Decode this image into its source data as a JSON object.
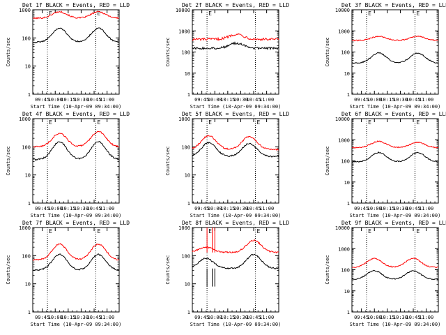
{
  "chart_data": [
    {
      "type": "line",
      "title": "Det 1f BLACK = Events, RED = LLD",
      "xlabel": "Start Time (10-Apr-09 09:34:00)",
      "ylabel": "Counts/sec",
      "scale": "log",
      "ylim": [
        1,
        1000
      ],
      "ytick_labels": [
        "1000",
        "100",
        "10",
        "1"
      ],
      "xtick_labels": [
        "09:45",
        "10:00",
        "10:15",
        "10:30",
        "10:45",
        "11:00"
      ],
      "vline_labels": [
        "E",
        "E"
      ],
      "events": {
        "base": 70,
        "peaks": [
          {
            "t": "10:05",
            "v": 220
          },
          {
            "t": "10:50",
            "v": 220
          }
        ]
      },
      "lld": {
        "base": 500,
        "peaks": [
          {
            "t": "10:05",
            "v": 850
          },
          {
            "t": "10:50",
            "v": 850
          }
        ]
      }
    },
    {
      "type": "line",
      "title": "Det 2f BLACK = Events, RED = LLD",
      "xlabel": "Start Time (10-Apr-09 09:34:00)",
      "ylabel": "Counts/sec",
      "scale": "log",
      "ylim": [
        1,
        10000
      ],
      "ytick_labels": [
        "10000",
        "1000",
        "100",
        "10",
        "1"
      ],
      "xtick_labels": [
        "09:45",
        "10:00",
        "10:15",
        "10:30",
        "10:45",
        "11:00"
      ],
      "vline_labels": [
        "E"
      ],
      "events": {
        "base": 150,
        "peaks": [
          {
            "t": "10:25",
            "v": 260
          }
        ]
      },
      "lld": {
        "base": 400,
        "peaks": [
          {
            "t": "10:25",
            "v": 700
          }
        ]
      }
    },
    {
      "type": "line",
      "title": "Det 3f BLACK = Events, RED = LLD",
      "xlabel": "Start Time (10-Apr-09 09:34:00)",
      "ylabel": "Counts/sec",
      "scale": "log",
      "ylim": [
        1,
        10000
      ],
      "ytick_labels": [
        "10000",
        "1000",
        "100",
        "10",
        "1"
      ],
      "xtick_labels": [
        "09:45",
        "10:00",
        "10:15",
        "10:30",
        "10:45",
        "11:00"
      ],
      "vline_labels": [
        "E",
        "E"
      ],
      "events": {
        "base": 30,
        "peaks": [
          {
            "t": "10:05",
            "v": 90
          },
          {
            "t": "10:50",
            "v": 90
          }
        ]
      },
      "lld": {
        "base": 350,
        "peaks": [
          {
            "t": "10:05",
            "v": 550
          },
          {
            "t": "10:50",
            "v": 550
          }
        ]
      }
    },
    {
      "type": "line",
      "title": "Det 4f BLACK = Events, RED = LLD",
      "xlabel": "Start Time (10-Apr-09 09:34:00)",
      "ylabel": "Counts/sec",
      "scale": "log",
      "ylim": [
        1,
        1000
      ],
      "ytick_labels": [
        "1000",
        "100",
        "10",
        "1"
      ],
      "xtick_labels": [
        "09:45",
        "10:00",
        "10:15",
        "10:30",
        "10:45",
        "11:00"
      ],
      "vline_labels": [
        "E",
        "E"
      ],
      "events": {
        "base": 35,
        "peaks": [
          {
            "t": "10:05",
            "v": 150
          },
          {
            "t": "10:50",
            "v": 150
          }
        ]
      },
      "lld": {
        "base": 100,
        "peaks": [
          {
            "t": "10:05",
            "v": 300
          },
          {
            "t": "10:50",
            "v": 350
          }
        ]
      }
    },
    {
      "type": "line",
      "title": "Det 5f BLACK = Events, RED = LLD",
      "xlabel": "Start Time (10-Apr-09 09:34:00)",
      "ylabel": "Counts/sec",
      "scale": "log",
      "ylim": [
        1,
        1000
      ],
      "ytick_labels": [
        "1000",
        "100",
        "10",
        "1"
      ],
      "xtick_labels": [
        "09:45",
        "10:00",
        "10:15",
        "10:30",
        "10:45",
        "11:00"
      ],
      "vline_labels": [
        "E",
        "E"
      ],
      "events": {
        "base": 45,
        "peaks": [
          {
            "t": "09:53",
            "v": 140
          },
          {
            "t": "10:40",
            "v": 130
          }
        ]
      },
      "lld": {
        "base": 80,
        "peaks": [
          {
            "t": "09:53",
            "v": 250
          },
          {
            "t": "10:40",
            "v": 230
          }
        ]
      }
    },
    {
      "type": "line",
      "title": "Det 6f BLACK = Events, RED = LLD",
      "xlabel": "Start Time (10-Apr-09 09:34:00)",
      "ylabel": "Counts/sec",
      "scale": "log",
      "ylim": [
        1,
        10000
      ],
      "ytick_labels": [
        "10000",
        "1000",
        "100",
        "10",
        "1"
      ],
      "xtick_labels": [
        "09:45",
        "10:00",
        "10:15",
        "10:30",
        "10:45",
        "11:00"
      ],
      "vline_labels": [
        "E",
        "E"
      ],
      "events": {
        "base": 90,
        "peaks": [
          {
            "t": "10:05",
            "v": 250
          },
          {
            "t": "10:50",
            "v": 250
          }
        ]
      },
      "lld": {
        "base": 420,
        "peaks": [
          {
            "t": "10:05",
            "v": 850
          },
          {
            "t": "10:50",
            "v": 750
          }
        ]
      }
    },
    {
      "type": "line",
      "title": "Det 7f BLACK = Events, RED = LLD",
      "xlabel": "Start Time (10-Apr-09 09:34:00)",
      "ylabel": "Counts/sec",
      "scale": "log",
      "ylim": [
        1,
        1000
      ],
      "ytick_labels": [
        "1000",
        "100",
        "10",
        "1"
      ],
      "xtick_labels": [
        "09:45",
        "10:00",
        "10:15",
        "10:30",
        "10:45",
        "11:00"
      ],
      "vline_labels": [
        "E",
        "E"
      ],
      "events": {
        "base": 30,
        "peaks": [
          {
            "t": "10:05",
            "v": 110
          },
          {
            "t": "10:50",
            "v": 110
          }
        ]
      },
      "lld": {
        "base": 70,
        "peaks": [
          {
            "t": "10:05",
            "v": 260
          },
          {
            "t": "10:50",
            "v": 260
          }
        ]
      }
    },
    {
      "type": "line",
      "title": "Det 8f BLACK = Events, RED = LLD",
      "xlabel": "Start Time (10-Apr-09 09:34:00)",
      "ylabel": "Counts/sec",
      "scale": "log",
      "ylim": [
        1,
        1000
      ],
      "ytick_labels": [
        "1000",
        "100",
        "10",
        "1"
      ],
      "xtick_labels": [
        "09:45",
        "10:00",
        "10:15",
        "10:30",
        "10:45",
        "11:00"
      ],
      "vline_labels": [
        "E",
        "E"
      ],
      "events": {
        "base": 35,
        "peaks": [
          {
            "t": "09:50",
            "v": 80
          },
          {
            "t": "10:45",
            "v": 110
          }
        ]
      },
      "lld": {
        "base": 130,
        "peaks": [
          {
            "t": "09:50",
            "v": 200
          },
          {
            "t": "10:45",
            "v": 350
          }
        ]
      },
      "spikes": [
        {
          "t": "09:51",
          "v": 1000
        },
        {
          "t": "09:57",
          "v": 1000
        },
        {
          "t": "10:00",
          "v": 1000
        }
      ]
    },
    {
      "type": "line",
      "title": "Det 9f BLACK = Events, RED = LLD",
      "xlabel": "Start Time (10-Apr-09 09:34:00)",
      "ylabel": "Counts/sec",
      "scale": "log",
      "ylim": [
        1,
        10000
      ],
      "ytick_labels": [
        "10000",
        "1000",
        "100",
        "10",
        "1"
      ],
      "xtick_labels": [
        "09:45",
        "10:00",
        "10:15",
        "10:30",
        "10:45",
        "11:00"
      ],
      "vline_labels": [
        "E",
        "E"
      ],
      "events": {
        "base": 35,
        "peaks": [
          {
            "t": "10:00",
            "v": 90
          },
          {
            "t": "10:45",
            "v": 90
          }
        ]
      },
      "lld": {
        "base": 130,
        "peaks": [
          {
            "t": "10:00",
            "v": 350
          },
          {
            "t": "10:45",
            "v": 350
          }
        ]
      }
    }
  ],
  "x_axis": {
    "start": "09:34",
    "end": "11:14",
    "vline_times": [
      "09:51",
      "10:47"
    ]
  },
  "colors": {
    "events": "#000000",
    "lld": "#ff0000",
    "axes": "#000000",
    "background": "#ffffff"
  }
}
